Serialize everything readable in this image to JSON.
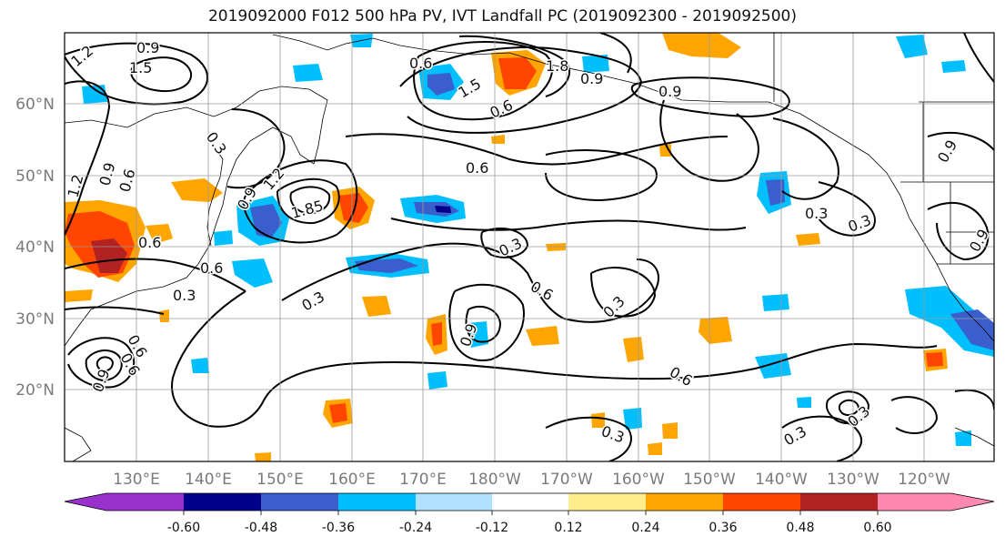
{
  "title": "2019092000 F012 500 hPa PV, IVT Landfall PC (2019092300 - 2019092500)",
  "map": {
    "lat_labels": [
      "60°N",
      "50°N",
      "40°N",
      "30°N",
      "20°N"
    ],
    "lon_labels": [
      "130°E",
      "140°E",
      "150°E",
      "160°E",
      "170°E",
      "180°W",
      "170°W",
      "160°W",
      "150°W",
      "140°W",
      "130°W",
      "120°W"
    ],
    "contour_labels": [
      "0.9",
      "1.5",
      "1.2",
      "0.6",
      "1.8",
      "0.9",
      "1.5",
      "0.9",
      "0.6",
      "0.6",
      "0.3",
      "1.2",
      "0.9",
      "0.6",
      "1.2",
      "1.85",
      "0.9",
      "0.6",
      "0.6",
      "0.3",
      "0.3",
      "0.3",
      "0.6",
      "0.3",
      "0.9",
      "0.6",
      "0.9",
      "0.3",
      "0.3",
      "0.6",
      "0.3",
      "0.3",
      "0.9",
      "0.9",
      "0.3",
      "0.6"
    ]
  },
  "colorbar": {
    "colors": [
      "#9932cc",
      "#00008b",
      "#3a5fcd",
      "#00bfff",
      "#b0e2ff",
      "#ffffff",
      "#ffec8b",
      "#ffa500",
      "#ff4500",
      "#b22222",
      "#ff88b0"
    ],
    "tick_labels": [
      "-0.60",
      "-0.48",
      "-0.36",
      "-0.24",
      "-0.12",
      "0.12",
      "0.24",
      "0.36",
      "0.48",
      "0.60"
    ]
  }
}
